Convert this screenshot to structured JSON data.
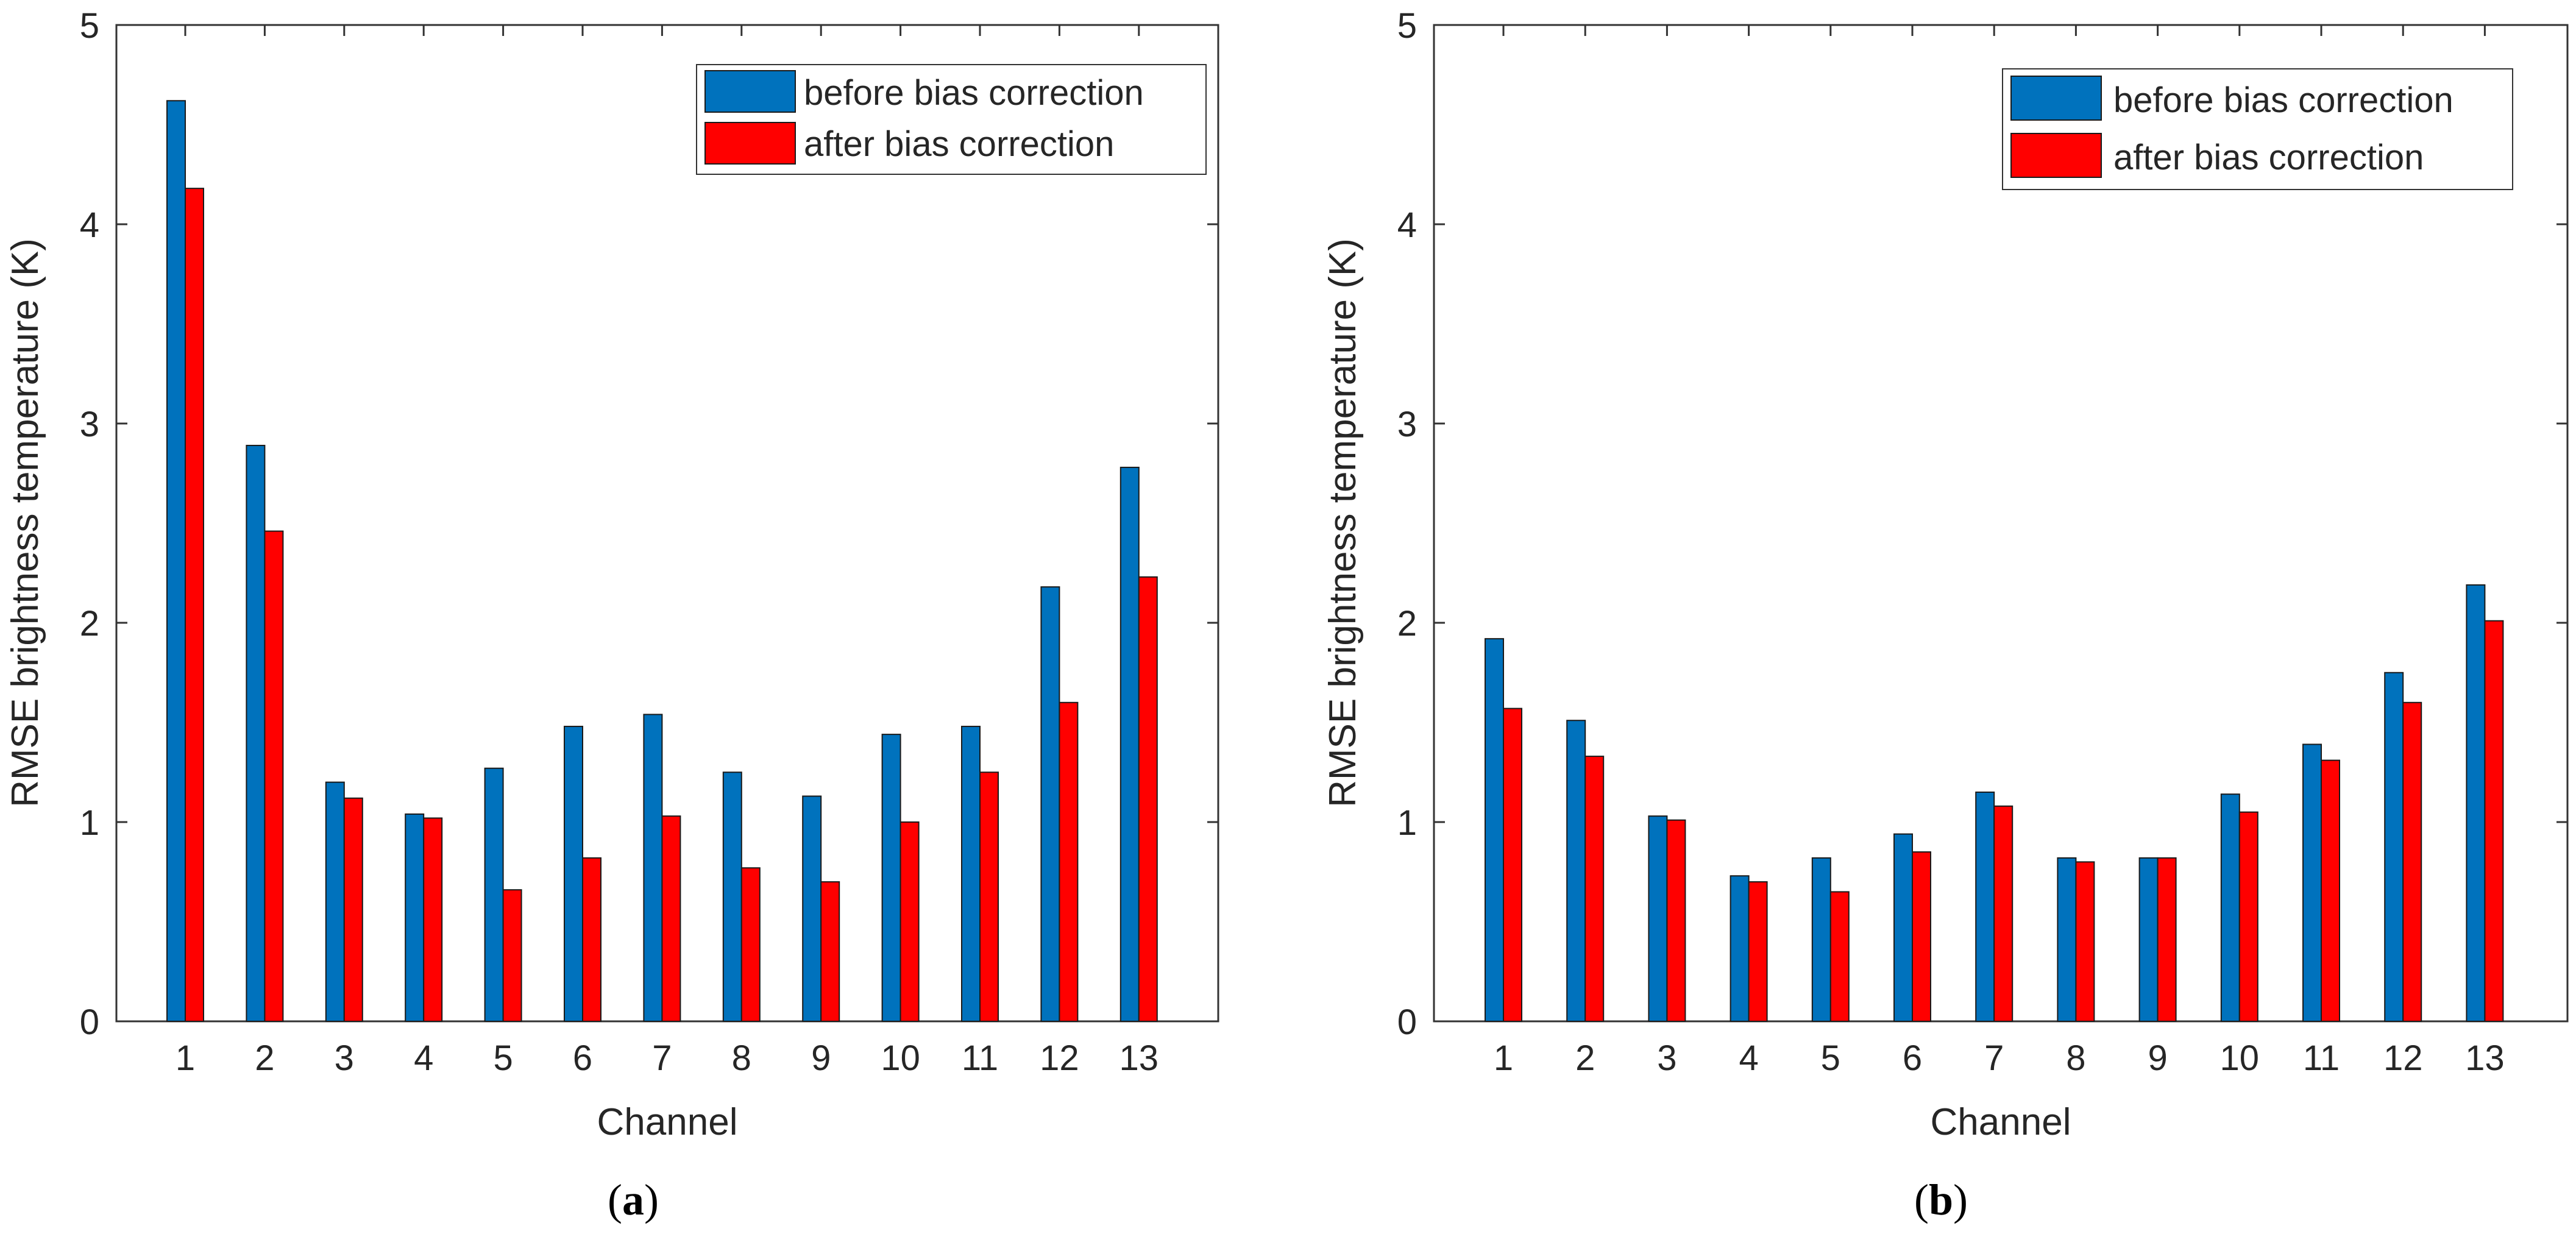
{
  "colors": {
    "before": "#0072BD",
    "after": "#FF0000",
    "axis": "#262626",
    "frame": "#333333"
  },
  "chart_data": [
    {
      "type": "bar",
      "caption_letter": "a",
      "xlabel": "Channel",
      "ylabel": "RMSE brightness temperature (K)",
      "ylim": [
        0,
        5
      ],
      "yticks": [
        0,
        1,
        2,
        3,
        4,
        5
      ],
      "legend_position": "top-right",
      "categories": [
        "1",
        "2",
        "3",
        "4",
        "5",
        "6",
        "7",
        "8",
        "9",
        "10",
        "11",
        "12",
        "13"
      ],
      "series": [
        {
          "name": "before bias correction",
          "values": [
            4.62,
            2.89,
            1.2,
            1.04,
            1.27,
            1.48,
            1.54,
            1.25,
            1.13,
            1.44,
            1.48,
            2.18,
            2.78
          ]
        },
        {
          "name": "after bias correction",
          "values": [
            4.18,
            2.46,
            1.12,
            1.02,
            0.66,
            0.82,
            1.03,
            0.77,
            0.7,
            1.0,
            1.25,
            1.6,
            2.23
          ]
        }
      ]
    },
    {
      "type": "bar",
      "caption_letter": "b",
      "xlabel": "Channel",
      "ylabel": "RMSE brightness temperature (K)",
      "ylim": [
        0,
        5
      ],
      "yticks": [
        0,
        1,
        2,
        3,
        4,
        5
      ],
      "legend_position": "top-right",
      "categories": [
        "1",
        "2",
        "3",
        "4",
        "5",
        "6",
        "7",
        "8",
        "9",
        "10",
        "11",
        "12",
        "13"
      ],
      "series": [
        {
          "name": "before bias correction",
          "values": [
            1.92,
            1.51,
            1.03,
            0.73,
            0.82,
            0.94,
            1.15,
            0.82,
            0.82,
            1.14,
            1.39,
            1.75,
            2.19
          ]
        },
        {
          "name": "after bias correction",
          "values": [
            1.57,
            1.33,
            1.01,
            0.7,
            0.65,
            0.85,
            1.08,
            0.8,
            0.82,
            1.05,
            1.31,
            1.6,
            2.01
          ]
        }
      ]
    }
  ]
}
